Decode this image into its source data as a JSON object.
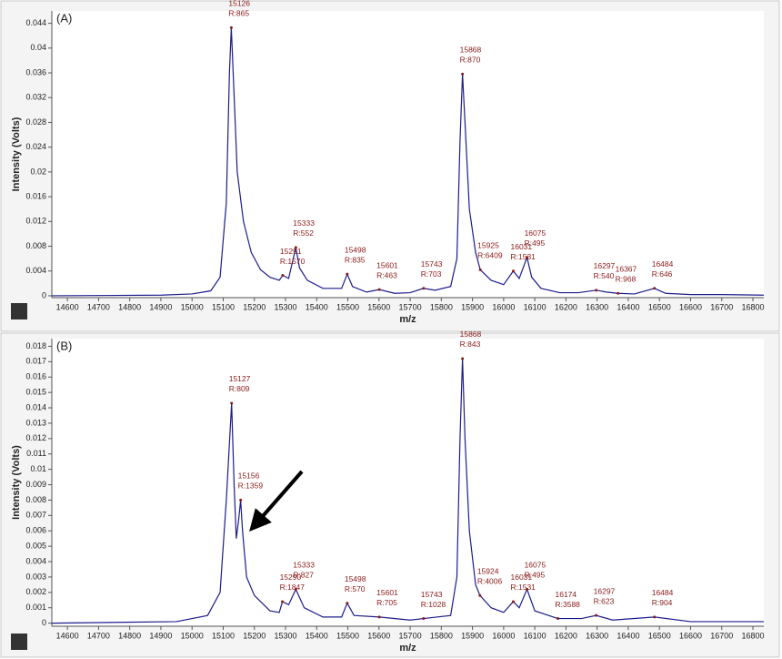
{
  "chart_data": [
    {
      "type": "line",
      "panel_label": "(A)",
      "x_label": "m/z",
      "y_label": "Intensity (Volts)",
      "color": "#1c1c8c",
      "label_color": "#8b1a1a",
      "xlim": [
        14550,
        16835
      ],
      "ylim": [
        -0.0003,
        0.046
      ],
      "xticks": [
        14600,
        14700,
        14800,
        14900,
        15000,
        15100,
        15200,
        15300,
        15400,
        15500,
        15600,
        15700,
        15800,
        15900,
        16000,
        16100,
        16200,
        16300,
        16400,
        16500,
        16600,
        16700,
        16800
      ],
      "yticks": [
        0,
        0.004,
        0.008,
        0.012,
        0.016,
        0.02,
        0.024,
        0.028,
        0.032,
        0.036,
        0.04,
        0.044
      ],
      "x": [
        14550,
        14900,
        15000,
        15060,
        15090,
        15110,
        15120,
        15126,
        15132,
        15145,
        15165,
        15190,
        15220,
        15250,
        15280,
        15291,
        15310,
        15333,
        15345,
        15370,
        15420,
        15480,
        15498,
        15515,
        15560,
        15601,
        15650,
        15700,
        15743,
        15780,
        15830,
        15850,
        15860,
        15868,
        15876,
        15890,
        15910,
        15925,
        15960,
        16000,
        16031,
        16050,
        16075,
        16090,
        16120,
        16180,
        16240,
        16297,
        16330,
        16367,
        16420,
        16484,
        16520,
        16600,
        16700,
        16835
      ],
      "values": [
        0,
        0.0001,
        0.0003,
        0.0008,
        0.003,
        0.015,
        0.036,
        0.0433,
        0.036,
        0.02,
        0.012,
        0.007,
        0.0042,
        0.003,
        0.0025,
        0.0033,
        0.0028,
        0.0078,
        0.0045,
        0.0025,
        0.0012,
        0.0012,
        0.0035,
        0.0015,
        0.0006,
        0.001,
        0.0004,
        0.0005,
        0.0012,
        0.0009,
        0.0015,
        0.006,
        0.025,
        0.0358,
        0.028,
        0.014,
        0.007,
        0.0042,
        0.0025,
        0.0018,
        0.004,
        0.0028,
        0.0062,
        0.003,
        0.0012,
        0.0005,
        0.0005,
        0.0009,
        0.0006,
        0.0004,
        0.0003,
        0.0012,
        0.0004,
        0.0002,
        0.0002,
        0.0001
      ],
      "annotations": [
        {
          "x": 15126,
          "y": 0.0433,
          "resolution": "R:865"
        },
        {
          "x": 15291,
          "y": 0.0033,
          "resolution": "R:1570"
        },
        {
          "x": 15333,
          "y": 0.0078,
          "resolution": "R:552"
        },
        {
          "x": 15498,
          "y": 0.0035,
          "resolution": "R:835"
        },
        {
          "x": 15601,
          "y": 0.001,
          "resolution": "R:463"
        },
        {
          "x": 15743,
          "y": 0.0012,
          "resolution": "R:703"
        },
        {
          "x": 15868,
          "y": 0.0358,
          "resolution": "R:870"
        },
        {
          "x": 15925,
          "y": 0.0042,
          "resolution": "R:6409"
        },
        {
          "x": 16031,
          "y": 0.004,
          "resolution": "R:1531"
        },
        {
          "x": 16075,
          "y": 0.0062,
          "resolution": "R:495"
        },
        {
          "x": 16297,
          "y": 0.0009,
          "resolution": "R:540"
        },
        {
          "x": 16367,
          "y": 0.0004,
          "resolution": "R:968"
        },
        {
          "x": 16484,
          "y": 0.0012,
          "resolution": "R:646"
        }
      ]
    },
    {
      "type": "line",
      "panel_label": "(B)",
      "x_label": "m/z",
      "y_label": "Intensity (Volts)",
      "color": "#1c1c8c",
      "label_color": "#8b1a1a",
      "xlim": [
        14550,
        16835
      ],
      "ylim": [
        -0.0002,
        0.0185
      ],
      "xticks": [
        14600,
        14700,
        14800,
        14900,
        15000,
        15100,
        15200,
        15300,
        15400,
        15500,
        15600,
        15700,
        15800,
        15900,
        16000,
        16100,
        16200,
        16300,
        16400,
        16500,
        16600,
        16700,
        16800
      ],
      "yticks": [
        0,
        0.001,
        0.002,
        0.003,
        0.004,
        0.005,
        0.006,
        0.007,
        0.008,
        0.009,
        0.01,
        0.011,
        0.012,
        0.013,
        0.014,
        0.015,
        0.016,
        0.017,
        0.018
      ],
      "x": [
        14550,
        14950,
        15050,
        15090,
        15110,
        15127,
        15135,
        15142,
        15150,
        15156,
        15162,
        15175,
        15200,
        15250,
        15280,
        15290,
        15310,
        15333,
        15360,
        15420,
        15480,
        15498,
        15520,
        15601,
        15700,
        15743,
        15830,
        15850,
        15860,
        15868,
        15876,
        15890,
        15910,
        15924,
        15960,
        16000,
        16031,
        16050,
        16075,
        16100,
        16174,
        16250,
        16297,
        16350,
        16484,
        16600,
        16835
      ],
      "values": [
        0,
        0.0001,
        0.0005,
        0.002,
        0.008,
        0.0143,
        0.009,
        0.0055,
        0.0068,
        0.008,
        0.006,
        0.003,
        0.0018,
        0.0008,
        0.0007,
        0.0014,
        0.0012,
        0.0022,
        0.001,
        0.0004,
        0.0004,
        0.0013,
        0.0005,
        0.0004,
        0.0002,
        0.0003,
        0.0005,
        0.003,
        0.012,
        0.0172,
        0.012,
        0.006,
        0.0025,
        0.0018,
        0.001,
        0.0007,
        0.0014,
        0.001,
        0.0022,
        0.0008,
        0.0003,
        0.0003,
        0.0005,
        0.0002,
        0.0004,
        0.0001,
        0.0001
      ],
      "annotations": [
        {
          "x": 15127,
          "y": 0.0143,
          "resolution": "R:809"
        },
        {
          "x": 15156,
          "y": 0.008,
          "resolution": "R:1359"
        },
        {
          "x": 15290,
          "y": 0.0014,
          "resolution": "R:1847"
        },
        {
          "x": 15333,
          "y": 0.0022,
          "resolution": "R:827"
        },
        {
          "x": 15498,
          "y": 0.0013,
          "resolution": "R:570"
        },
        {
          "x": 15601,
          "y": 0.0004,
          "resolution": "R:705"
        },
        {
          "x": 15743,
          "y": 0.0003,
          "resolution": "R:1028"
        },
        {
          "x": 15868,
          "y": 0.0172,
          "resolution": "R:843"
        },
        {
          "x": 15924,
          "y": 0.0018,
          "resolution": "R:4006"
        },
        {
          "x": 16031,
          "y": 0.0014,
          "resolution": "R:1531"
        },
        {
          "x": 16075,
          "y": 0.0022,
          "resolution": "R:495"
        },
        {
          "x": 16174,
          "y": 0.0003,
          "resolution": "R:3588"
        },
        {
          "x": 16297,
          "y": 0.0005,
          "resolution": "R:623"
        },
        {
          "x": 16484,
          "y": 0.0004,
          "resolution": "R:904"
        }
      ]
    }
  ]
}
